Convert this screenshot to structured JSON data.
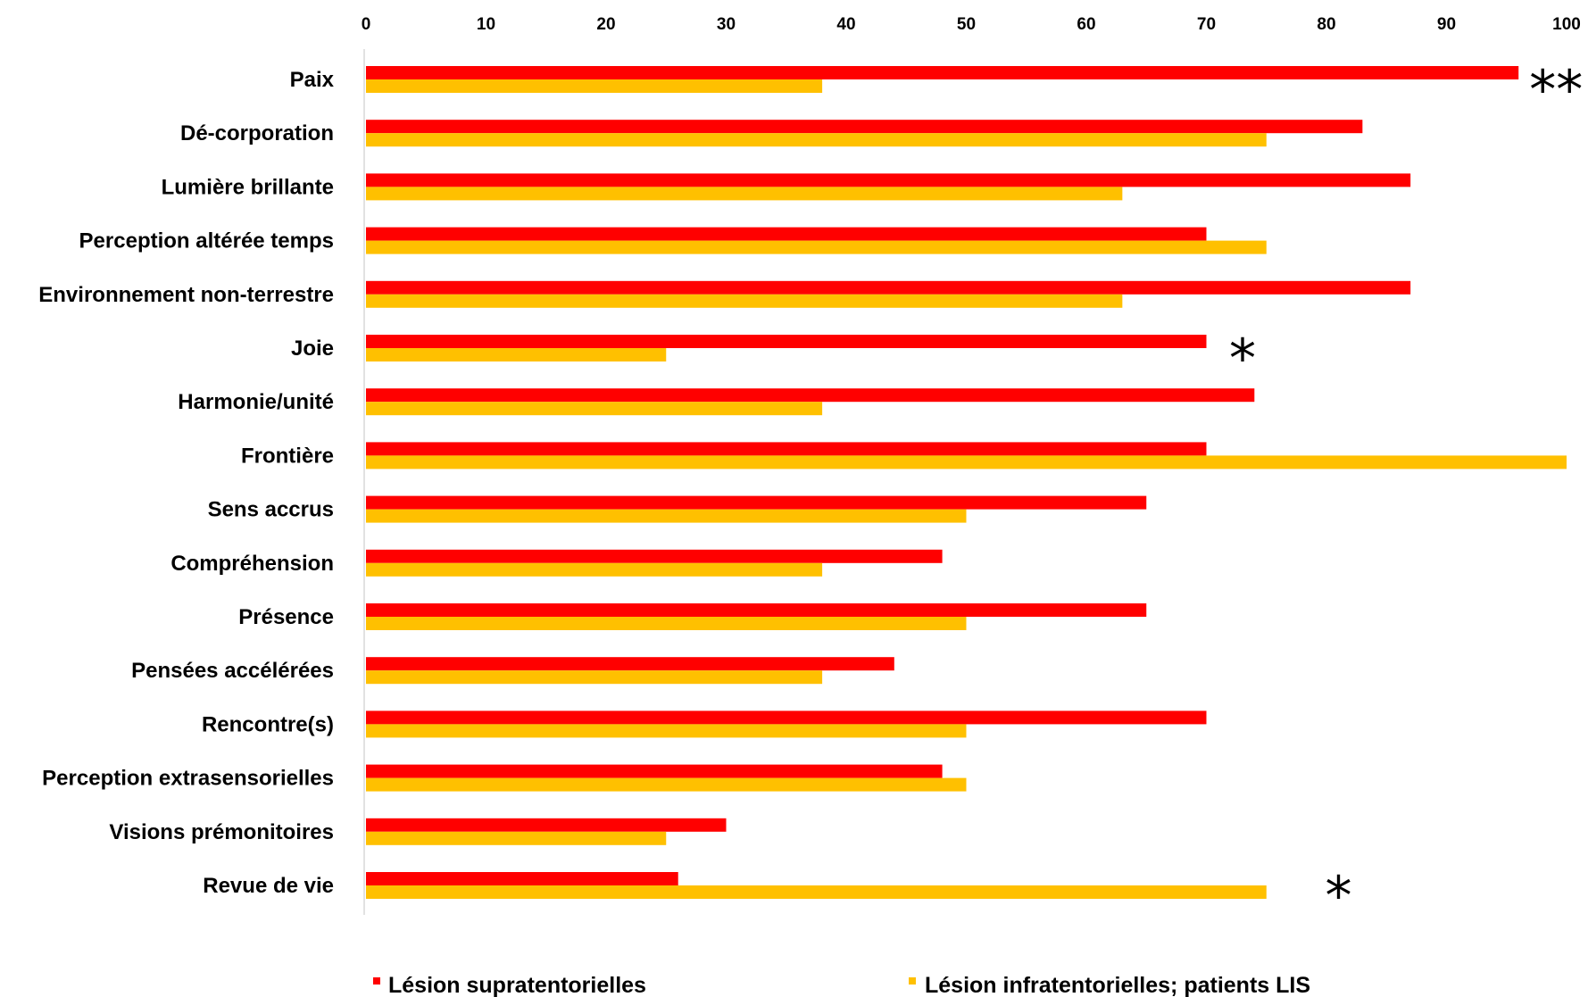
{
  "chart_data": {
    "type": "bar",
    "orientation": "horizontal",
    "categories": [
      "Paix",
      "Dé-corporation",
      "Lumière brillante",
      "Perception altérée temps",
      "Environnement non-terrestre",
      "Joie",
      "Harmonie/unité",
      "Frontière",
      "Sens accrus",
      "Compréhension",
      "Présence",
      "Pensées accélérées",
      "Rencontre(s)",
      "Perception extrasensorielles",
      "Visions prémonitoires",
      "Revue de vie"
    ],
    "series": [
      {
        "name": "Lésion supratentorielles",
        "color": "#ff0000",
        "values": [
          96,
          83,
          87,
          70,
          87,
          70,
          74,
          70,
          65,
          48,
          65,
          44,
          70,
          48,
          30,
          26
        ]
      },
      {
        "name": "Lésion infratentorielles; patients LIS",
        "color": "#ffc000",
        "values": [
          38,
          75,
          63,
          75,
          63,
          25,
          38,
          100,
          50,
          38,
          50,
          38,
          50,
          50,
          25,
          75
        ]
      }
    ],
    "xlim": [
      0,
      100
    ],
    "xticks": [
      "0",
      "10",
      "20",
      "30",
      "40",
      "50",
      "60",
      "70",
      "80",
      "90",
      "100"
    ],
    "axis_position": "top",
    "grid": false,
    "legend": "bottom",
    "annotations": [
      {
        "category_index": 0,
        "text": "**",
        "value": 96
      },
      {
        "category_index": 5,
        "text": "*",
        "value": 71
      },
      {
        "category_index": 15,
        "text": "*",
        "value": 79
      }
    ]
  }
}
